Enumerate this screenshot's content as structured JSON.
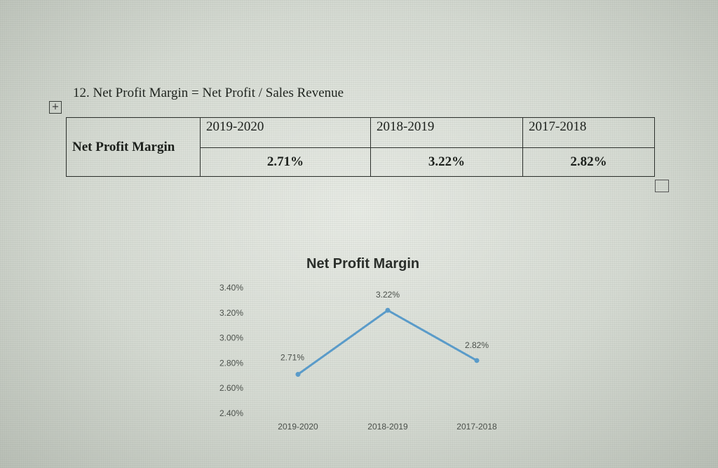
{
  "heading": "12. Net Profit Margin = Net Profit / Sales Revenue",
  "table": {
    "row_label": "Net Profit Margin",
    "years": [
      "2019-2020",
      "2018-2019",
      "2017-2018"
    ],
    "values": [
      "2.71%",
      "3.22%",
      "2.82%"
    ]
  },
  "icons": {
    "move": "move-handle-icon",
    "resize": "resize-handle-icon"
  },
  "chart_data": {
    "type": "line",
    "title": "Net Profit Margin",
    "categories": [
      "2019-2020",
      "2018-2019",
      "2017-2018"
    ],
    "series": [
      {
        "values": [
          2.71,
          3.22,
          2.82
        ],
        "color": "#5a9bc9"
      }
    ],
    "data_labels": [
      "2.71%",
      "3.22%",
      "2.82%"
    ],
    "y_ticks": [
      "2.40%",
      "2.60%",
      "2.80%",
      "3.00%",
      "3.20%",
      "3.40%"
    ],
    "ylim": [
      2.4,
      3.4
    ],
    "grid": false,
    "legend": "none"
  }
}
